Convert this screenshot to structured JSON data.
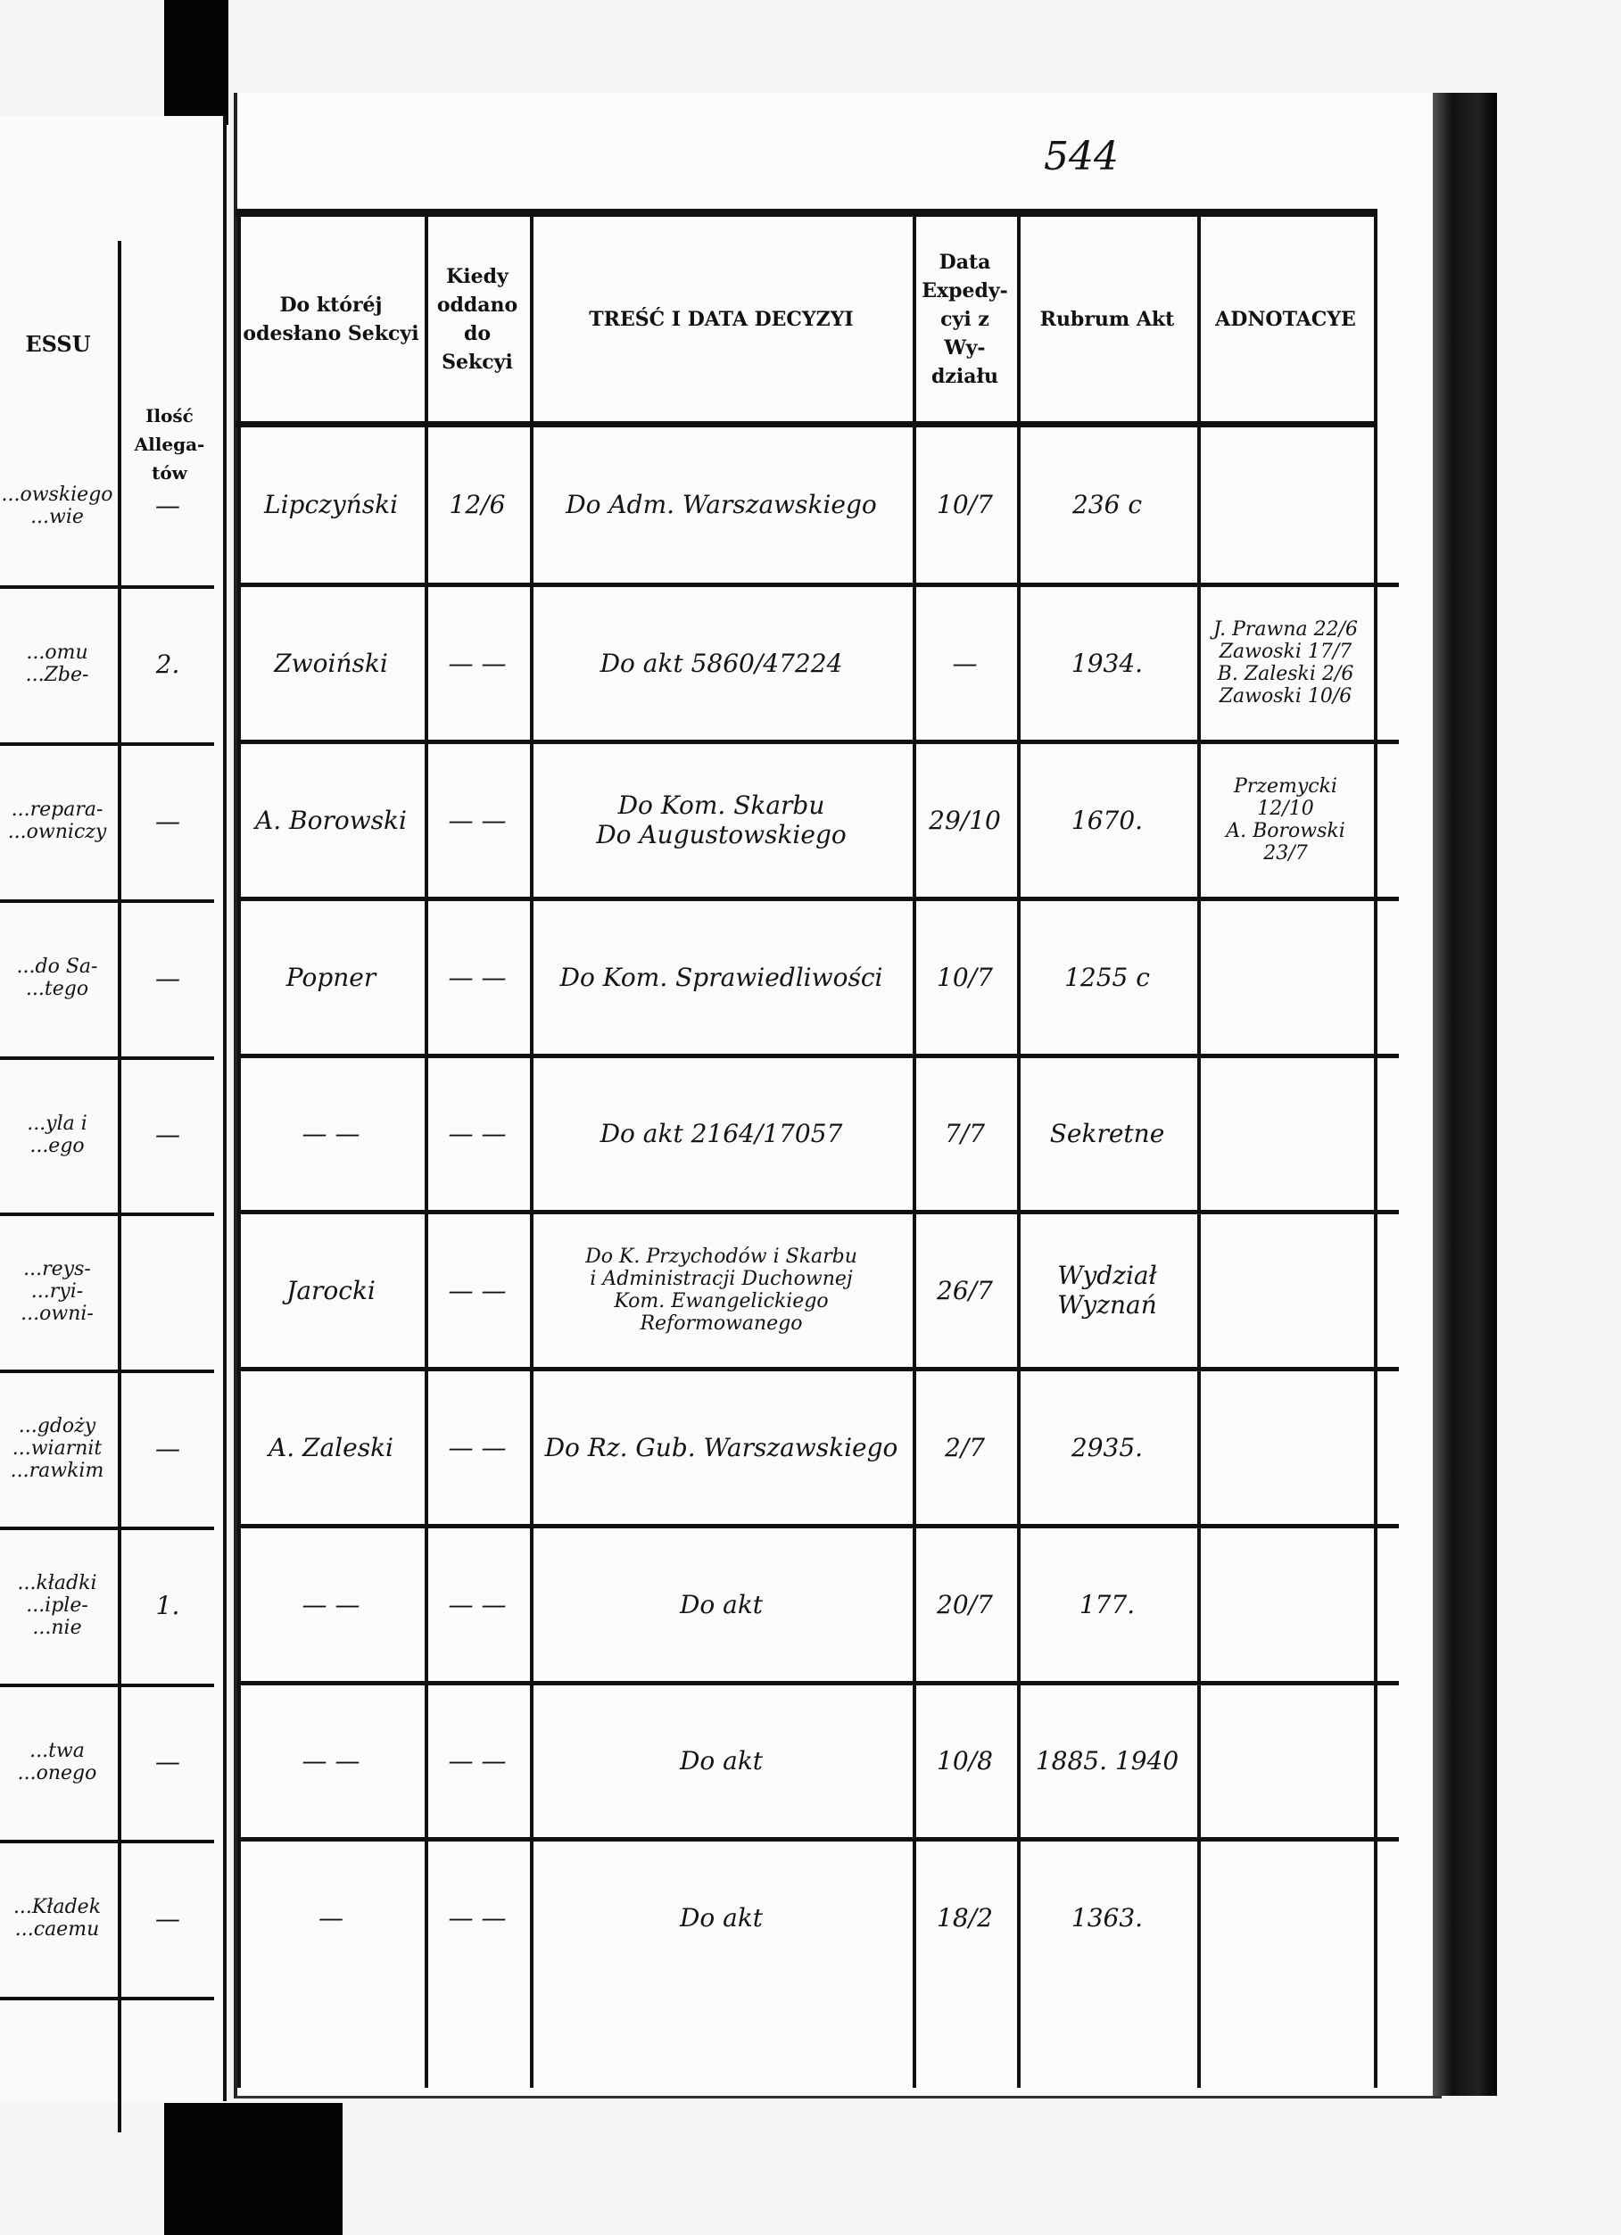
{
  "page_number": "544",
  "left_page": {
    "header_partial": "ESSU",
    "allegata_header": "Ilość Allega-tów",
    "rows": [
      {
        "text": "...owskiego ...wie",
        "allegata": "—"
      },
      {
        "text": "...omu ...Zbe-",
        "allegata": "2."
      },
      {
        "text": "...repara- ...owniczy",
        "allegata": "—"
      },
      {
        "text": "...do Sa- ...tego",
        "allegata": "—"
      },
      {
        "text": "...yla i ...ego",
        "allegata": "—"
      },
      {
        "text": "...reys- ...ryi- ...owni-",
        "allegata": ""
      },
      {
        "text": "...gdoży ...wiarnit ...rawkim",
        "allegata": "—"
      },
      {
        "text": "...kładki ...iple- ...nie",
        "allegata": "1."
      },
      {
        "text": "...twa ...onego",
        "allegata": "—"
      },
      {
        "text": "...Kładek ...caemu",
        "allegata": "—"
      }
    ]
  },
  "headers": {
    "sekcja": "Do któréj odesłano Sekcyi",
    "kiedy": "Kiedy oddano do Sekcyi",
    "tresc": "TREŚĆ I DATA DECYZYI",
    "data": "Data Expedy-cyi z Wy-działu",
    "rubrum": "Rubrum Akt",
    "adnotacye": "ADNOTACYE"
  },
  "rows": [
    {
      "sekcja": "Lipczyński",
      "kiedy": "12/6",
      "tresc": "Do Adm. Warszawskiego",
      "data": "10/7",
      "rubrum": "236 c",
      "adnotacye": ""
    },
    {
      "sekcja": "Zwoiński",
      "kiedy": "— —",
      "tresc": "Do akt 5860/47224",
      "data": "—",
      "rubrum": "1934.",
      "adnotacye": "J. Prawna 22/6\nZawoski 17/7\nB. Zaleski 2/6\nZawoski 10/6"
    },
    {
      "sekcja": "A. Borowski",
      "kiedy": "— —",
      "tresc": "Do Kom. Skarbu\nDo Augustowskiego",
      "data": "29/10",
      "rubrum": "1670.",
      "adnotacye": "Przemycki 12/10\nA. Borowski 23/7"
    },
    {
      "sekcja": "Popner",
      "kiedy": "— —",
      "tresc": "Do Kom. Sprawiedliwości",
      "data": "10/7",
      "rubrum": "1255 c",
      "adnotacye": ""
    },
    {
      "sekcja": "— —",
      "kiedy": "— —",
      "tresc": "Do akt 2164/17057",
      "data": "7/7",
      "rubrum": "Sekretne",
      "adnotacye": ""
    },
    {
      "sekcja": "Jarocki",
      "kiedy": "— —",
      "tresc": "Do K. Przychodów i Skarbu\ni Administracji Duchownej\nKom. Ewangelickiego\nReformowanego",
      "data": "26/7",
      "rubrum": "Wydział\nWyznań",
      "adnotacye": ""
    },
    {
      "sekcja": "A. Zaleski",
      "kiedy": "— —",
      "tresc": "Do Rz. Gub. Warszawskiego",
      "data": "2/7",
      "rubrum": "2935.",
      "adnotacye": ""
    },
    {
      "sekcja": "— —",
      "kiedy": "— —",
      "tresc": "Do akt",
      "data": "20/7",
      "rubrum": "177.",
      "adnotacye": ""
    },
    {
      "sekcja": "— —",
      "kiedy": "— —",
      "tresc": "Do akt",
      "data": "10/8",
      "rubrum": "1885. 1940",
      "adnotacye": ""
    },
    {
      "sekcja": "—",
      "kiedy": "— —",
      "tresc": "Do akt",
      "data": "18/2",
      "rubrum": "1363.",
      "adnotacye": ""
    }
  ]
}
